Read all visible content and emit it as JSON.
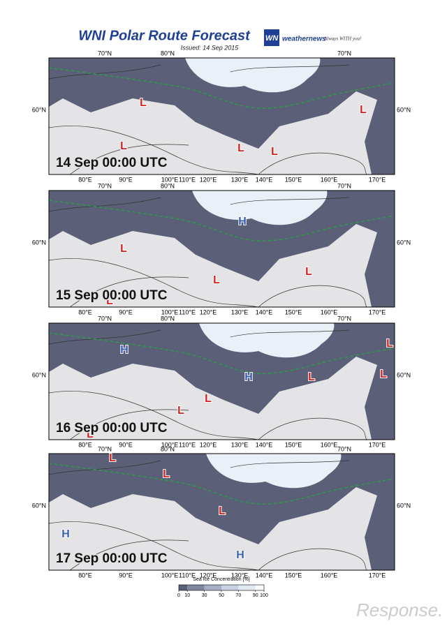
{
  "header": {
    "title": "WNI Polar Route Forecast",
    "issued": "Issued: 14 Sep 2015",
    "logo_mark": "WN",
    "brand": "weathernews",
    "tagline": "Always WITH you!"
  },
  "grid_labels": {
    "top": [
      "70°N",
      "80°N",
      "70°N"
    ],
    "side": "60°N",
    "bottom": [
      "80°E",
      "90°E",
      "100°E",
      "110°E",
      "120°E",
      "130°E",
      "140°E",
      "150°E",
      "160°E",
      "170°E"
    ]
  },
  "panels": [
    {
      "time": "14 Sep 00:00 UTC",
      "systems": [
        "L",
        "L",
        "L",
        "L",
        "L"
      ]
    },
    {
      "time": "15 Sep 00:00 UTC",
      "systems": [
        "H",
        "L",
        "L",
        "L",
        "L"
      ]
    },
    {
      "time": "16 Sep 00:00 UTC",
      "systems": [
        "H",
        "H",
        "L",
        "L",
        "L",
        "L",
        "L",
        "L"
      ]
    },
    {
      "time": "17 Sep 00:00 UTC",
      "systems": [
        "L",
        "L",
        "L",
        "H",
        "H"
      ]
    }
  ],
  "legend": {
    "title": "Sea Ice Concentration [%]",
    "ticks": [
      0,
      10,
      30,
      50,
      70,
      90,
      100
    ]
  },
  "watermark": "Response."
}
